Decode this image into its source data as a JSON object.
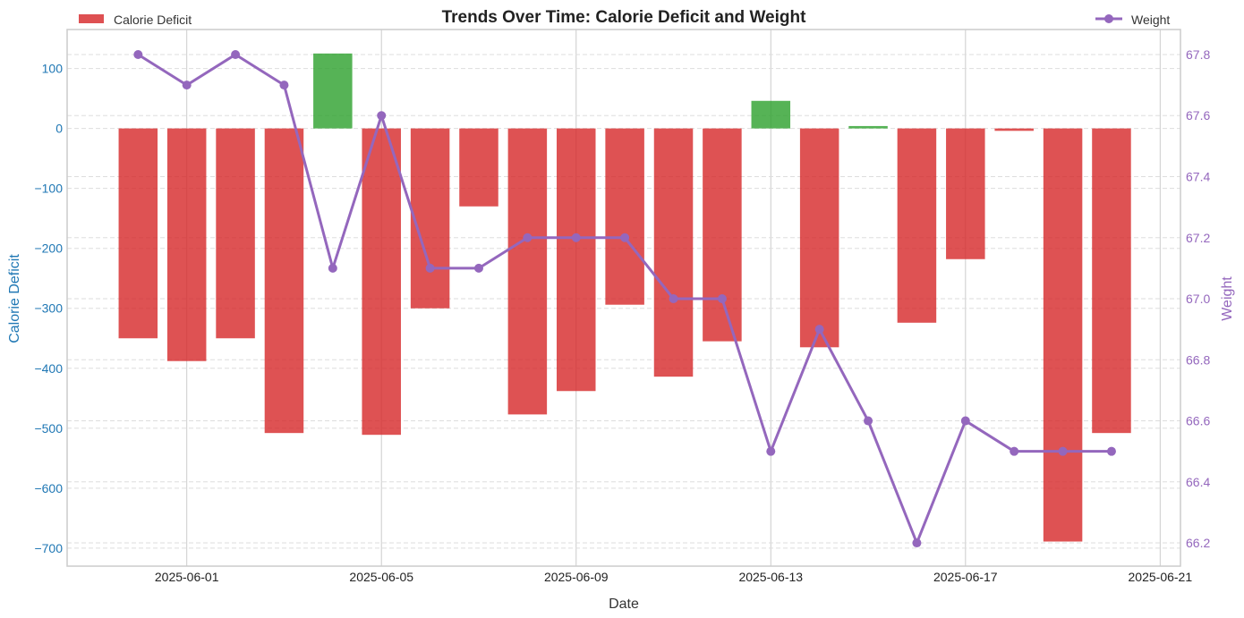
{
  "chart_data": {
    "type": "bar+line",
    "title": "Trends Over Time: Calorie Deficit and Weight",
    "xlabel": "Date",
    "ylabel_left": "Calorie Deficit",
    "ylabel_right": "Weight",
    "dates": [
      "2025-05-31",
      "2025-06-01",
      "2025-06-02",
      "2025-06-03",
      "2025-06-04",
      "2025-06-05",
      "2025-06-06",
      "2025-06-07",
      "2025-06-08",
      "2025-06-09",
      "2025-06-10",
      "2025-06-11",
      "2025-06-12",
      "2025-06-13",
      "2025-06-14",
      "2025-06-15",
      "2025-06-16",
      "2025-06-17",
      "2025-06-18",
      "2025-06-19",
      "2025-06-20"
    ],
    "series": [
      {
        "name": "Calorie Deficit",
        "type": "bar",
        "axis": "left",
        "values": [
          -350,
          -388,
          -350,
          -508,
          125,
          -511,
          -300,
          -130,
          -477,
          -438,
          -294,
          -414,
          -355,
          46,
          -365,
          4,
          -324,
          -218,
          -4,
          -689,
          -508
        ]
      },
      {
        "name": "Weight",
        "type": "line",
        "axis": "right",
        "values": [
          67.8,
          67.7,
          67.8,
          67.7,
          67.1,
          67.6,
          67.1,
          67.1,
          67.2,
          67.2,
          67.2,
          67.0,
          67.0,
          66.5,
          66.9,
          66.6,
          66.2,
          66.6,
          66.5,
          66.5,
          66.5
        ]
      }
    ],
    "xlim": [
      "2025-05-29T13:00",
      "2025-06-21T10:00"
    ],
    "ylim_left": [
      -730,
      165
    ],
    "ylim_right": [
      66.124,
      67.882
    ],
    "x_ticks": [
      "2025-06-01",
      "2025-06-05",
      "2025-06-09",
      "2025-06-13",
      "2025-06-17",
      "2025-06-21"
    ],
    "y_ticks_left": [
      "100",
      "0",
      "−100",
      "−200",
      "−300",
      "−400",
      "−500",
      "−600",
      "−700"
    ],
    "y_tick_values_left": [
      100,
      0,
      -100,
      -200,
      -300,
      -400,
      -500,
      -600,
      -700
    ],
    "y_ticks_right": [
      "67.8",
      "67.6",
      "67.4",
      "67.2",
      "67.0",
      "66.8",
      "66.6",
      "66.4",
      "66.2"
    ],
    "y_tick_values_right": [
      67.8,
      67.6,
      67.4,
      67.2,
      67.0,
      66.8,
      66.6,
      66.4,
      66.2
    ],
    "grid": true,
    "legend_left": {
      "label": "Calorie Deficit",
      "placement": "top-left"
    },
    "legend_right": {
      "label": "Weight",
      "placement": "top-right"
    },
    "colors": {
      "deficit": "#d62728",
      "surplus": "#2ca02c",
      "weight": "#9467bd",
      "left_axis": "#1f77b4"
    }
  }
}
